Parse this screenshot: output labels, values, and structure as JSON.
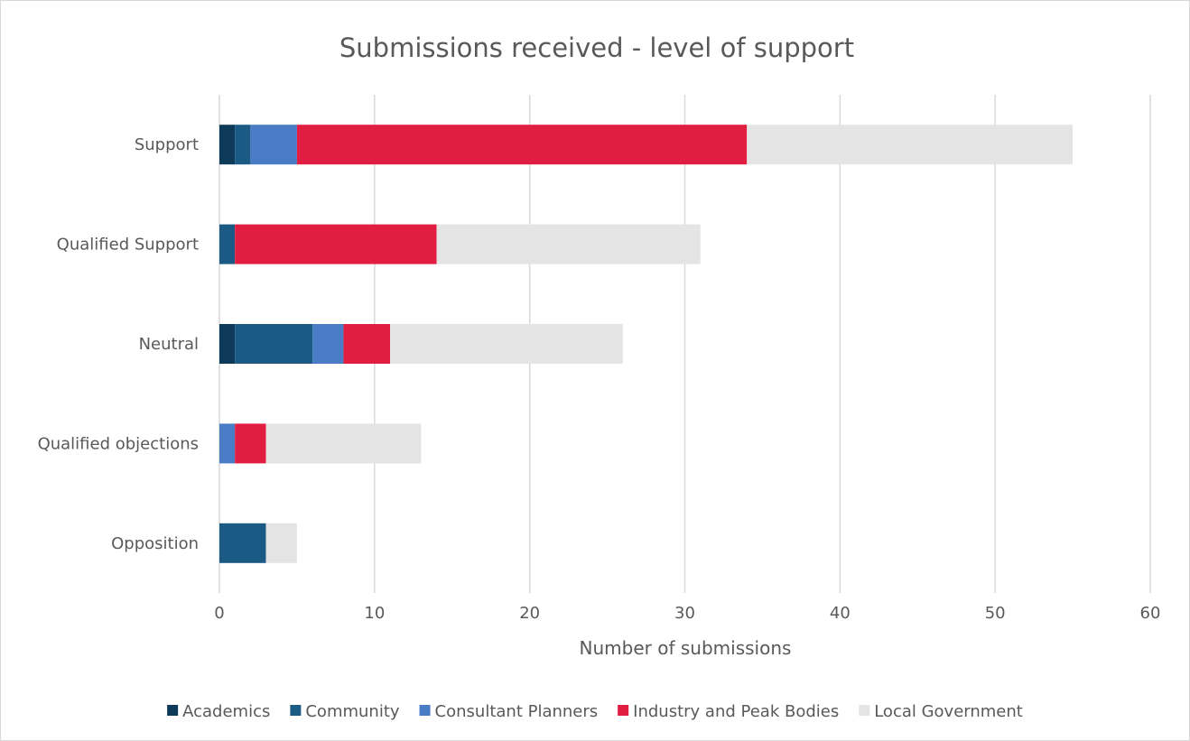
{
  "chart_data": {
    "type": "bar",
    "orientation": "horizontal",
    "stacked": true,
    "title": "Submissions received - level of support",
    "xlabel": "Number of submissions",
    "ylabel": "",
    "categories": [
      "Support",
      "Qualified Support",
      "Neutral",
      "Qualified objections",
      "Opposition"
    ],
    "xlim": [
      0,
      60
    ],
    "x_ticks": [
      0,
      10,
      20,
      30,
      40,
      50,
      60
    ],
    "grid": true,
    "legend_position": "bottom",
    "series": [
      {
        "name": "Academics",
        "color": "#0e3a5a",
        "values": [
          1,
          0,
          1,
          0,
          0
        ]
      },
      {
        "name": "Community",
        "color": "#1a5a84",
        "values": [
          1,
          1,
          5,
          0,
          3
        ]
      },
      {
        "name": "Consultant Planners",
        "color": "#4a7cc6",
        "values": [
          3,
          0,
          2,
          1,
          0
        ]
      },
      {
        "name": "Industry and Peak Bodies",
        "color": "#e11d41",
        "values": [
          29,
          13,
          3,
          2,
          0
        ]
      },
      {
        "name": "Local Government",
        "color": "#e4e4e4",
        "values": [
          21,
          17,
          15,
          10,
          2
        ]
      }
    ]
  }
}
